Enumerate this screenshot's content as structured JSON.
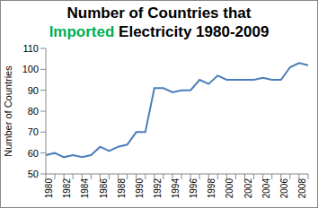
{
  "chart_data": {
    "type": "line",
    "title": "Number of Countries that Imported Electricity 1980-2009",
    "ylabel": "Number of Countries",
    "categories": [
      "1980",
      null,
      "1982",
      null,
      "1984",
      null,
      "1986",
      null,
      "1988",
      null,
      "1990",
      null,
      "1992",
      null,
      "1994",
      null,
      "1996",
      null,
      "1998",
      null,
      "2000",
      null,
      "2002",
      null,
      "2004",
      null,
      "2006",
      null,
      "2008",
      null
    ],
    "values": [
      59,
      60,
      58,
      59,
      58,
      59,
      63,
      61,
      63,
      64,
      70,
      70,
      91,
      91,
      89,
      90,
      90,
      95,
      93,
      97,
      95,
      95,
      95,
      95,
      96,
      95,
      95,
      101,
      103,
      102
    ],
    "color": "#4a7ebb",
    "ylim": [
      50,
      110
    ],
    "yticks": [
      50,
      60,
      70,
      80,
      90,
      100,
      110
    ],
    "grid": false
  }
}
